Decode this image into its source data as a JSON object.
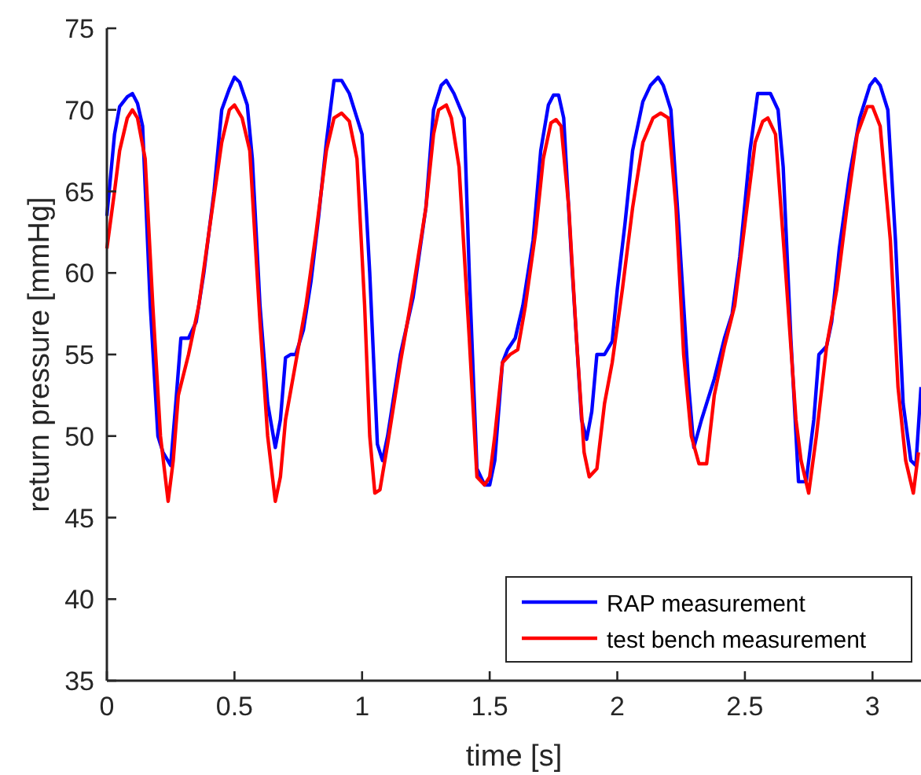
{
  "chart_data": {
    "type": "line",
    "xlabel": "time  [s]",
    "ylabel": "return pressure  [mmHg]",
    "xlim": [
      0,
      3.19
    ],
    "ylim": [
      35,
      75
    ],
    "xticks": [
      0,
      0.5,
      1,
      1.5,
      2,
      2.5,
      3
    ],
    "yticks": [
      35,
      40,
      45,
      50,
      55,
      60,
      65,
      70,
      75
    ],
    "grid": false,
    "legend": "bottom right",
    "line_style": "solid",
    "series": [
      {
        "name": "RAP measurement",
        "color": "#0000ff",
        "x": [
          0,
          0.03,
          0.05,
          0.08,
          0.1,
          0.12,
          0.14,
          0.17,
          0.2,
          0.22,
          0.25,
          0.27,
          0.29,
          0.32,
          0.35,
          0.38,
          0.42,
          0.45,
          0.48,
          0.5,
          0.52,
          0.55,
          0.57,
          0.6,
          0.63,
          0.66,
          0.68,
          0.7,
          0.72,
          0.74,
          0.77,
          0.8,
          0.83,
          0.86,
          0.89,
          0.92,
          0.95,
          0.98,
          1.0,
          1.03,
          1.06,
          1.08,
          1.1,
          1.15,
          1.2,
          1.25,
          1.28,
          1.31,
          1.33,
          1.36,
          1.4,
          1.42,
          1.45,
          1.48,
          1.5,
          1.52,
          1.55,
          1.57,
          1.6,
          1.63,
          1.67,
          1.7,
          1.73,
          1.75,
          1.77,
          1.79,
          1.82,
          1.86,
          1.88,
          1.9,
          1.92,
          1.95,
          1.98,
          2.0,
          2.03,
          2.06,
          2.1,
          2.13,
          2.16,
          2.18,
          2.21,
          2.24,
          2.28,
          2.3,
          2.33,
          2.38,
          2.42,
          2.45,
          2.48,
          2.52,
          2.55,
          2.6,
          2.63,
          2.65,
          2.68,
          2.71,
          2.74,
          2.77,
          2.79,
          2.82,
          2.84,
          2.87,
          2.91,
          2.95,
          2.99,
          3.01,
          3.03,
          3.06,
          3.09,
          3.12,
          3.15,
          3.17,
          3.19
        ],
        "values": [
          63.5,
          68.5,
          70.2,
          70.8,
          71,
          70.4,
          69,
          58,
          50,
          49,
          48.2,
          52,
          56,
          56,
          57,
          60,
          65,
          70,
          71.3,
          72,
          71.7,
          70.3,
          67,
          58,
          52,
          49.3,
          51,
          54.8,
          55,
          55,
          56.5,
          59.5,
          63.5,
          68,
          71.8,
          71.8,
          71,
          69.5,
          68.5,
          60,
          49.5,
          48.5,
          50,
          55,
          58.5,
          64,
          70,
          71.5,
          71.8,
          71,
          69.5,
          60,
          48,
          47,
          47,
          48.5,
          54.5,
          55.3,
          56,
          58,
          62,
          67.5,
          70.3,
          70.9,
          70.9,
          69.5,
          61,
          51,
          49.8,
          51.5,
          55,
          55,
          55.8,
          59,
          63,
          67.5,
          70.5,
          71.5,
          72,
          71.5,
          70,
          63,
          53,
          49.3,
          51,
          53.5,
          56,
          57.5,
          61,
          67.5,
          71,
          71,
          70,
          66.5,
          56,
          47.2,
          47.2,
          51,
          55,
          55.5,
          57,
          61.5,
          66,
          69.5,
          71.5,
          71.9,
          71.5,
          70,
          62,
          52,
          48.5,
          48.2,
          53
        ]
      },
      {
        "name": "test bench measurement",
        "color": "#ff0000",
        "x": [
          0,
          0.03,
          0.05,
          0.08,
          0.1,
          0.12,
          0.15,
          0.18,
          0.21,
          0.24,
          0.26,
          0.28,
          0.32,
          0.36,
          0.4,
          0.45,
          0.48,
          0.5,
          0.53,
          0.56,
          0.6,
          0.63,
          0.66,
          0.68,
          0.7,
          0.74,
          0.78,
          0.82,
          0.86,
          0.89,
          0.92,
          0.95,
          0.98,
          1.01,
          1.03,
          1.05,
          1.07,
          1.1,
          1.15,
          1.2,
          1.25,
          1.28,
          1.3,
          1.33,
          1.35,
          1.38,
          1.42,
          1.45,
          1.48,
          1.5,
          1.52,
          1.55,
          1.58,
          1.61,
          1.64,
          1.68,
          1.71,
          1.74,
          1.76,
          1.78,
          1.81,
          1.84,
          1.87,
          1.89,
          1.92,
          1.95,
          1.98,
          2.02,
          2.06,
          2.1,
          2.14,
          2.17,
          2.2,
          2.23,
          2.26,
          2.29,
          2.32,
          2.35,
          2.38,
          2.42,
          2.46,
          2.5,
          2.54,
          2.57,
          2.59,
          2.62,
          2.66,
          2.7,
          2.72,
          2.75,
          2.78,
          2.82,
          2.86,
          2.9,
          2.94,
          2.98,
          3.0,
          3.03,
          3.07,
          3.1,
          3.13,
          3.16,
          3.18
        ],
        "values": [
          61.5,
          65,
          67.5,
          69.5,
          70,
          69.5,
          67,
          58,
          50,
          46,
          48.5,
          52.5,
          55,
          58,
          62.5,
          68,
          70,
          70.3,
          69.5,
          67.5,
          57,
          50,
          46,
          47.5,
          51,
          54.5,
          58,
          62.5,
          67.5,
          69.5,
          69.8,
          69.3,
          67,
          58,
          50,
          46.5,
          46.7,
          49.5,
          54.5,
          59,
          64,
          68.5,
          70,
          70.3,
          69.5,
          66.5,
          56,
          47.5,
          47,
          47.5,
          50,
          54.5,
          55,
          55.3,
          58,
          62.5,
          67,
          69.2,
          69.4,
          69,
          64,
          56,
          49,
          47.5,
          48,
          52,
          54.5,
          59,
          64,
          68,
          69.5,
          69.8,
          69.5,
          64,
          55,
          50,
          48.3,
          48.3,
          52.5,
          55.5,
          58,
          63,
          68,
          69.3,
          69.5,
          68.5,
          60,
          51,
          48.5,
          46.5,
          50,
          55.5,
          59,
          64,
          68.5,
          70.2,
          70.2,
          69,
          62,
          53,
          48.5,
          46.5,
          49
        ]
      }
    ]
  }
}
